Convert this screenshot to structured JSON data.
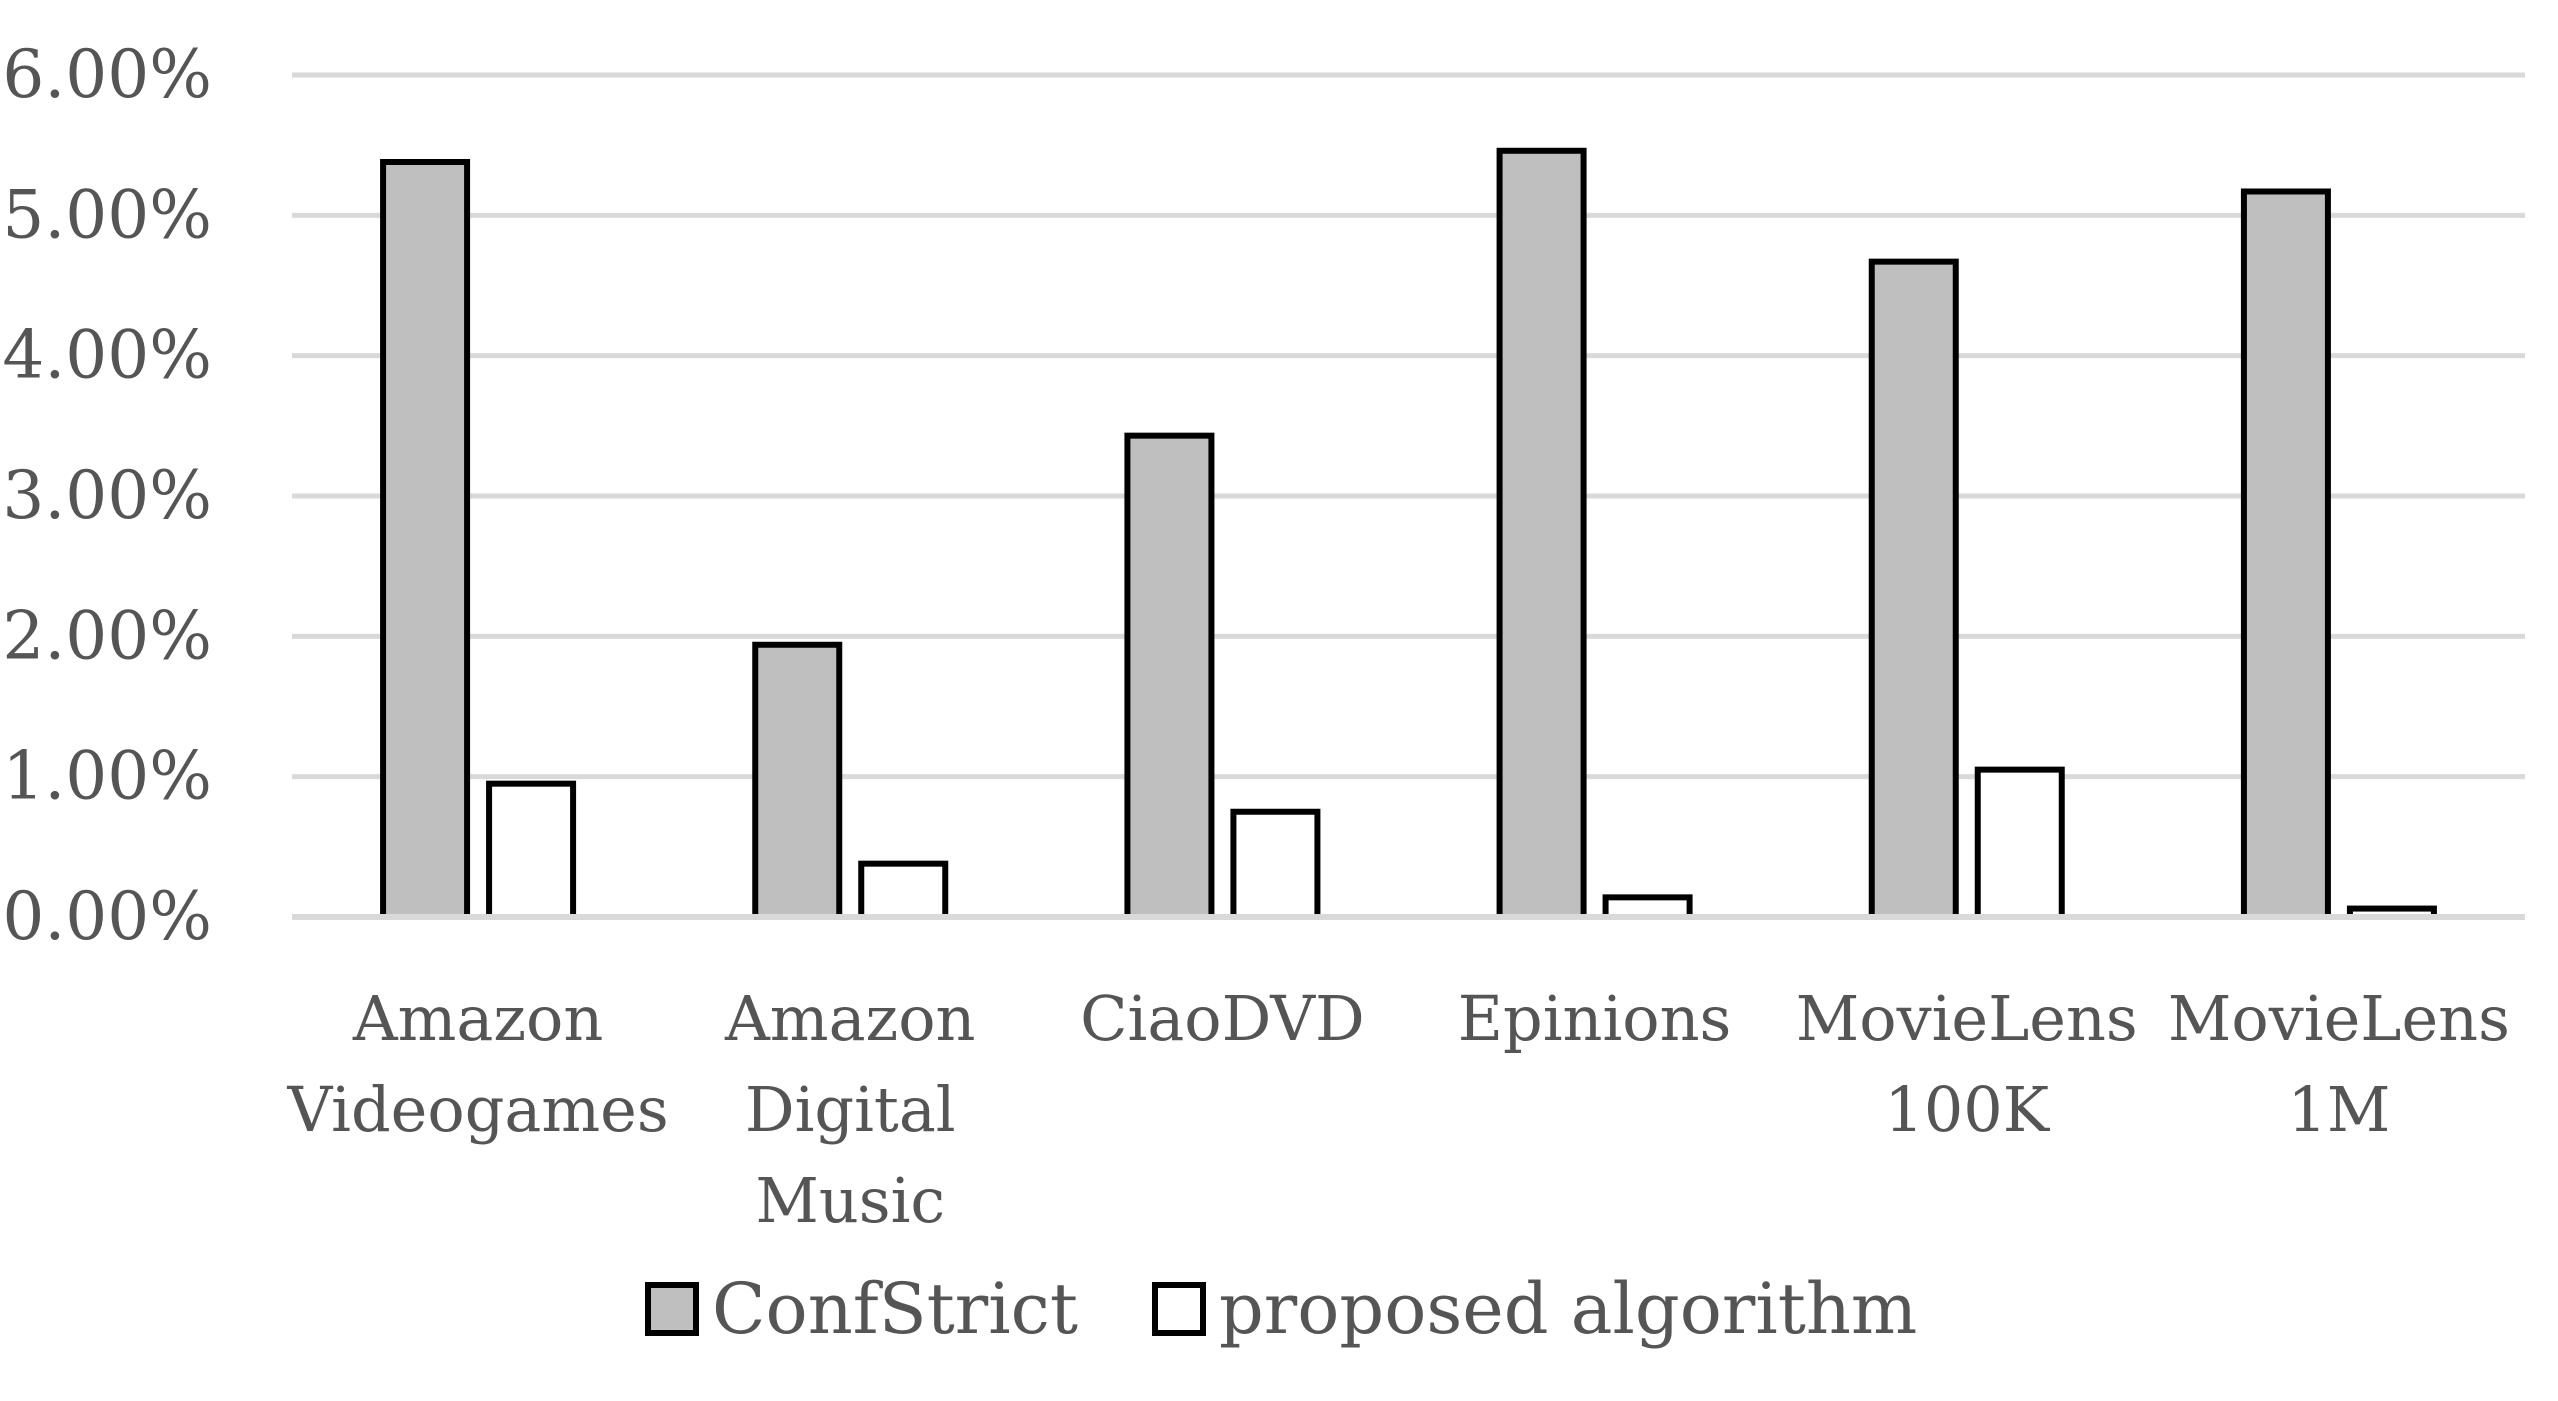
{
  "chart_data": {
    "type": "bar",
    "title": "",
    "xlabel": "",
    "ylabel": "",
    "ylim": [
      0,
      6
    ],
    "y_tick_values": [
      0,
      1,
      2,
      3,
      4,
      5,
      6
    ],
    "y_tick_labels": [
      "0.00%",
      "1.00%",
      "2.00%",
      "3.00%",
      "4.00%",
      "5.00%",
      "6.00%"
    ],
    "grid": true,
    "legend_position": "bottom",
    "categories": [
      [
        "Amazon",
        "Videogames"
      ],
      [
        "Amazon",
        "Digital",
        "Music"
      ],
      [
        "CiaoDVD"
      ],
      [
        "Epinions"
      ],
      [
        "MovieLens",
        "100K"
      ],
      [
        "MovieLens",
        "1M"
      ]
    ],
    "series": [
      {
        "name": "ConfStrict",
        "color": "#bfbfbf",
        "values": [
          5.38,
          1.94,
          3.43,
          5.46,
          4.67,
          5.17
        ]
      },
      {
        "name": "proposed algorithm",
        "color": "#ffffff",
        "values": [
          0.95,
          0.38,
          0.75,
          0.14,
          1.05,
          0.06
        ]
      }
    ],
    "unit": "%"
  }
}
